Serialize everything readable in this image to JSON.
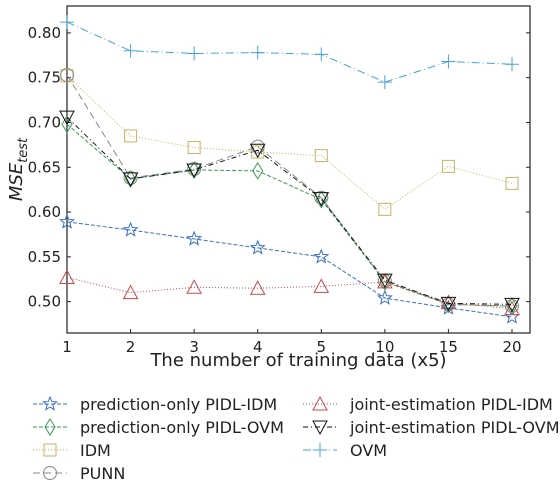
{
  "chart_data": {
    "type": "line",
    "xlabel": "The number of training data (x5)",
    "ylabel": {
      "main": "MSE",
      "sub": "test"
    },
    "categories": [
      "1",
      "2",
      "3",
      "4",
      "5",
      "10",
      "15",
      "20"
    ],
    "ylim": [
      0.465,
      0.83
    ],
    "yticks": [
      "0.50",
      "0.55",
      "0.60",
      "0.65",
      "0.70",
      "0.75",
      "0.80"
    ],
    "ytick_values": [
      0.5,
      0.55,
      0.6,
      0.65,
      0.7,
      0.75,
      0.8
    ],
    "grid": false,
    "legend_position": "bottom",
    "series": [
      {
        "name": "prediction-only PIDL-IDM",
        "color": "#3b6fc4",
        "marker": "star",
        "dash": "4,2",
        "values": [
          0.589,
          0.58,
          0.57,
          0.56,
          0.55,
          0.504,
          0.493,
          0.483
        ]
      },
      {
        "name": "prediction-only PIDL-OVM",
        "color": "#3c9a55",
        "marker": "diamond",
        "dash": "4,2",
        "values": [
          0.698,
          0.637,
          0.647,
          0.646,
          0.614,
          0.522,
          0.497,
          0.495
        ]
      },
      {
        "name": "IDM",
        "color": "#c8b264",
        "marker": "square",
        "dash": "1,2",
        "values": [
          0.752,
          0.685,
          0.672,
          0.667,
          0.663,
          0.603,
          0.651,
          0.632
        ]
      },
      {
        "name": "PUNN",
        "color": "#888888",
        "marker": "circle",
        "dash": "7,4",
        "values": [
          0.753,
          0.638,
          0.648,
          0.673,
          0.616,
          0.523,
          0.497,
          0.495
        ]
      },
      {
        "name": "joint-estimation PIDL-IDM",
        "color": "#c94a4a",
        "marker": "triangle-up",
        "dash": "1,2",
        "values": [
          0.527,
          0.51,
          0.516,
          0.515,
          0.517,
          0.522,
          0.499,
          0.492
        ]
      },
      {
        "name": "joint-estimation PIDL-OVM",
        "color": "#111111",
        "marker": "triangle-down",
        "dash": "5,3,1,3",
        "values": [
          0.706,
          0.637,
          0.647,
          0.669,
          0.615,
          0.524,
          0.498,
          0.497
        ]
      },
      {
        "name": "OVM",
        "color": "#4aa3d4",
        "marker": "plus",
        "dash": "8,3,1,3",
        "values": [
          0.812,
          0.78,
          0.777,
          0.778,
          0.776,
          0.745,
          0.768,
          0.765
        ]
      }
    ]
  }
}
